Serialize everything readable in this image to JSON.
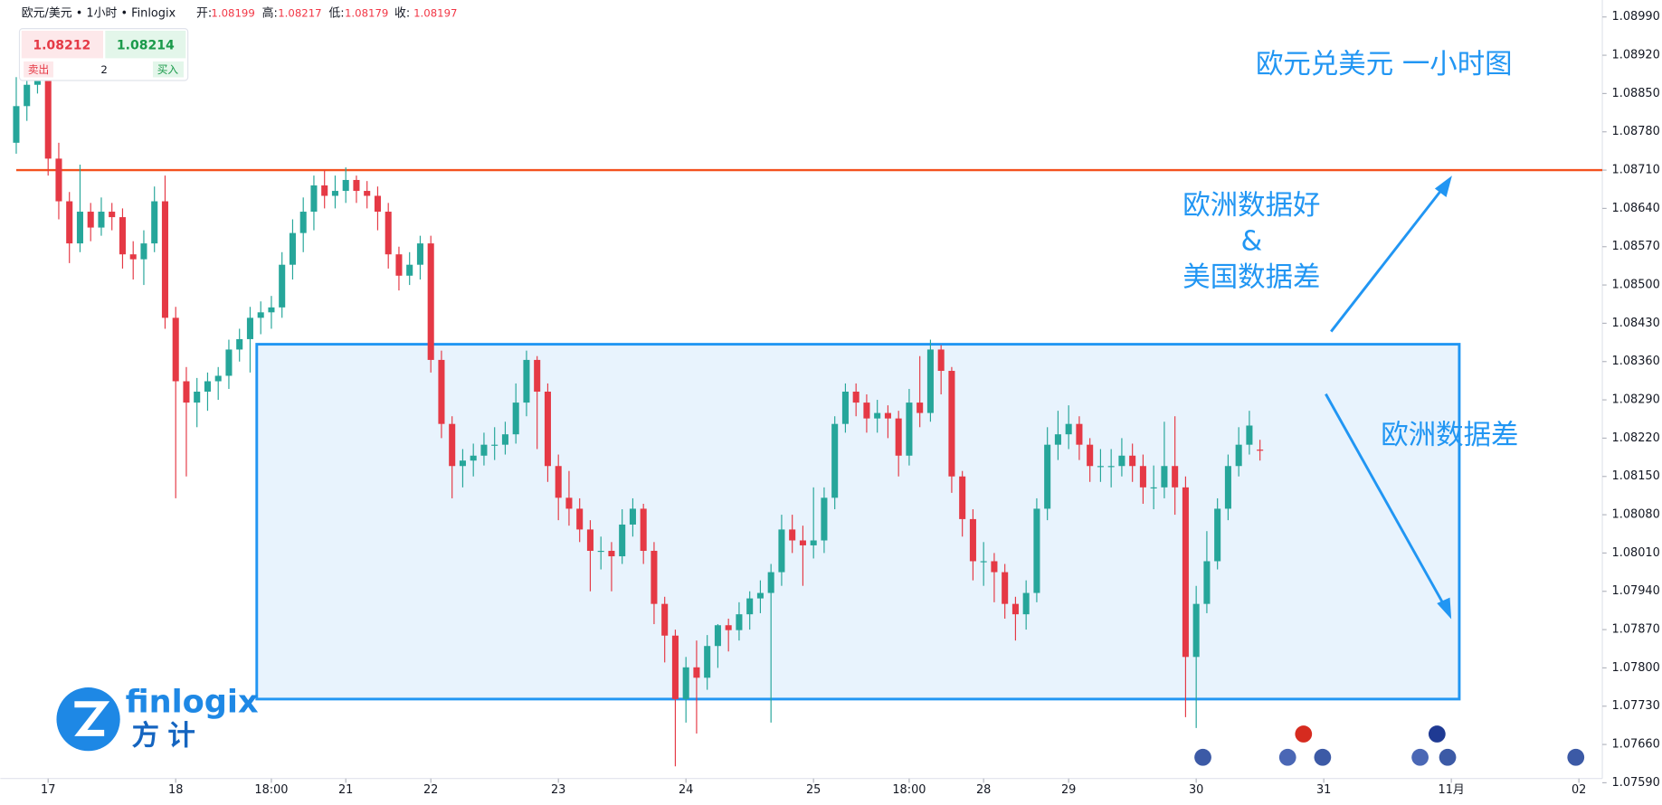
{
  "header": {
    "symbol": "欧元/美元 • 1小时 • Finlogix",
    "open_label": "开:",
    "high_label": "高:",
    "low_label": "低:",
    "close_label": "收:"
  },
  "widget": {
    "sell_price": 1.08212,
    "buy_price": 1.08214,
    "sell": "卖出",
    "quantity": 2,
    "buy": "买入"
  },
  "logo": {
    "brand": "finlogix",
    "chinese": "方计"
  },
  "chart_data": {
    "type": "candlestick",
    "title": "欧元兑美元 一小时图",
    "annotations": [
      "欧洲数据好",
      "&",
      "美国数据差",
      "欧洲数据差"
    ],
    "up_color": "#26a69a",
    "down_color": "#e53945",
    "level_color": "#f4511e",
    "level": 1.0871,
    "ohlc": [
      [
        1.0876,
        1.0888,
        1.0874,
        1.08827
      ],
      [
        1.08827,
        1.089,
        1.088,
        1.08866
      ],
      [
        1.08866,
        1.0893,
        1.0885,
        1.08905
      ],
      [
        1.08905,
        1.08915,
        1.087,
        1.08731
      ],
      [
        1.08731,
        1.0876,
        1.0862,
        1.08653
      ],
      [
        1.08653,
        1.0867,
        1.0854,
        1.08576
      ],
      [
        1.08576,
        1.0872,
        1.0856,
        1.08634
      ],
      [
        1.08634,
        1.0865,
        1.0858,
        1.08605
      ],
      [
        1.08605,
        1.0866,
        1.0859,
        1.08634
      ],
      [
        1.08634,
        1.0865,
        1.086,
        1.08624
      ],
      [
        1.08624,
        1.0864,
        1.0853,
        1.08556
      ],
      [
        1.08556,
        1.0858,
        1.0851,
        1.08547
      ],
      [
        1.08547,
        1.086,
        1.085,
        1.08576
      ],
      [
        1.08576,
        1.0868,
        1.0856,
        1.08653
      ],
      [
        1.08653,
        1.087,
        1.0842,
        1.0844
      ],
      [
        1.0844,
        1.0846,
        1.0811,
        1.08324
      ],
      [
        1.08324,
        1.0835,
        1.0815,
        1.08285
      ],
      [
        1.08285,
        1.0833,
        1.0824,
        1.08305
      ],
      [
        1.08305,
        1.0834,
        1.0827,
        1.08324
      ],
      [
        1.08324,
        1.0835,
        1.0829,
        1.08334
      ],
      [
        1.08334,
        1.084,
        1.0831,
        1.08382
      ],
      [
        1.08382,
        1.0842,
        1.0836,
        1.08401
      ],
      [
        1.08401,
        1.0846,
        1.0834,
        1.0844
      ],
      [
        1.0844,
        1.0847,
        1.0841,
        1.0845
      ],
      [
        1.0845,
        1.0848,
        1.0842,
        1.08459
      ],
      [
        1.08459,
        1.0856,
        1.0844,
        1.08537
      ],
      [
        1.08537,
        1.0862,
        1.0851,
        1.08595
      ],
      [
        1.08595,
        1.0866,
        1.0856,
        1.08634
      ],
      [
        1.08634,
        1.087,
        1.086,
        1.08682
      ],
      [
        1.08682,
        1.0871,
        1.0864,
        1.08663
      ],
      [
        1.08663,
        1.087,
        1.0864,
        1.08672
      ],
      [
        1.08672,
        1.08715,
        1.0865,
        1.08692
      ],
      [
        1.08692,
        1.087,
        1.0865,
        1.08672
      ],
      [
        1.08672,
        1.0869,
        1.0864,
        1.08663
      ],
      [
        1.08663,
        1.0868,
        1.086,
        1.08634
      ],
      [
        1.08634,
        1.0865,
        1.0853,
        1.08556
      ],
      [
        1.08556,
        1.0857,
        1.0849,
        1.08517
      ],
      [
        1.08517,
        1.0856,
        1.085,
        1.08537
      ],
      [
        1.08537,
        1.0859,
        1.0851,
        1.08576
      ],
      [
        1.08576,
        1.0859,
        1.0834,
        1.08363
      ],
      [
        1.08363,
        1.0838,
        1.0822,
        1.08246
      ],
      [
        1.08246,
        1.0826,
        1.0811,
        1.08169
      ],
      [
        1.08169,
        1.082,
        1.0813,
        1.08179
      ],
      [
        1.08179,
        1.0821,
        1.0815,
        1.08188
      ],
      [
        1.08188,
        1.0823,
        1.0817,
        1.08208
      ],
      [
        1.08208,
        1.0824,
        1.0818,
        1.08208
      ],
      [
        1.08208,
        1.0825,
        1.0819,
        1.08227
      ],
      [
        1.08227,
        1.0832,
        1.0821,
        1.08285
      ],
      [
        1.08285,
        1.0838,
        1.0826,
        1.08363
      ],
      [
        1.08363,
        1.0837,
        1.082,
        1.08305
      ],
      [
        1.08305,
        1.0832,
        1.0814,
        1.08169
      ],
      [
        1.08169,
        1.0819,
        1.0807,
        1.08111
      ],
      [
        1.08111,
        1.0816,
        1.0806,
        1.08091
      ],
      [
        1.08091,
        1.0811,
        1.0803,
        1.08053
      ],
      [
        1.08053,
        1.0807,
        1.0794,
        1.08014
      ],
      [
        1.08014,
        1.0804,
        1.0798,
        1.08014
      ],
      [
        1.08014,
        1.0803,
        1.0794,
        1.08004
      ],
      [
        1.08004,
        1.0809,
        1.0799,
        1.08062
      ],
      [
        1.08062,
        1.0811,
        1.0804,
        1.08091
      ],
      [
        1.08091,
        1.081,
        1.0799,
        1.08014
      ],
      [
        1.08014,
        1.0803,
        1.0788,
        1.07917
      ],
      [
        1.07917,
        1.0793,
        1.0781,
        1.07859
      ],
      [
        1.07859,
        1.0787,
        1.0762,
        1.07743
      ],
      [
        1.07743,
        1.0782,
        1.077,
        1.07801
      ],
      [
        1.07801,
        1.0785,
        1.0768,
        1.07782
      ],
      [
        1.07782,
        1.0786,
        1.0776,
        1.0784
      ],
      [
        1.0784,
        1.0788,
        1.078,
        1.07878
      ],
      [
        1.07878,
        1.0789,
        1.0783,
        1.07869
      ],
      [
        1.07869,
        1.0792,
        1.0785,
        1.07898
      ],
      [
        1.07898,
        1.0794,
        1.0787,
        1.07927
      ],
      [
        1.07927,
        1.0796,
        1.079,
        1.07937
      ],
      [
        1.07937,
        1.0799,
        1.077,
        1.07975
      ],
      [
        1.07975,
        1.0808,
        1.0795,
        1.08053
      ],
      [
        1.08053,
        1.0808,
        1.0801,
        1.08033
      ],
      [
        1.08033,
        1.0806,
        1.0795,
        1.08024
      ],
      [
        1.08024,
        1.0813,
        1.08,
        1.08033
      ],
      [
        1.08033,
        1.0813,
        1.0801,
        1.08111
      ],
      [
        1.08111,
        1.0826,
        1.0809,
        1.08246
      ],
      [
        1.08246,
        1.0832,
        1.0823,
        1.08305
      ],
      [
        1.08305,
        1.0832,
        1.0826,
        1.08285
      ],
      [
        1.08285,
        1.083,
        1.0823,
        1.08256
      ],
      [
        1.08256,
        1.0829,
        1.0823,
        1.08266
      ],
      [
        1.08266,
        1.0828,
        1.0822,
        1.08256
      ],
      [
        1.08256,
        1.0827,
        1.0815,
        1.08188
      ],
      [
        1.08188,
        1.0831,
        1.0817,
        1.08285
      ],
      [
        1.08285,
        1.0837,
        1.0824,
        1.08266
      ],
      [
        1.08266,
        1.084,
        1.0825,
        1.08382
      ],
      [
        1.08382,
        1.0839,
        1.083,
        1.08343
      ],
      [
        1.08343,
        1.0835,
        1.0812,
        1.0815
      ],
      [
        1.0815,
        1.0816,
        1.0804,
        1.08072
      ],
      [
        1.08072,
        1.0809,
        1.0796,
        1.07995
      ],
      [
        1.07995,
        1.0803,
        1.0795,
        1.07995
      ],
      [
        1.07995,
        1.0801,
        1.0792,
        1.07975
      ],
      [
        1.07975,
        1.0799,
        1.0789,
        1.07917
      ],
      [
        1.07917,
        1.0793,
        1.0785,
        1.07898
      ],
      [
        1.07898,
        1.0796,
        1.0787,
        1.07937
      ],
      [
        1.07937,
        1.0811,
        1.0792,
        1.08091
      ],
      [
        1.08091,
        1.0824,
        1.0807,
        1.08208
      ],
      [
        1.08208,
        1.0827,
        1.0818,
        1.08227
      ],
      [
        1.08227,
        1.0828,
        1.082,
        1.08246
      ],
      [
        1.08246,
        1.0826,
        1.0818,
        1.08208
      ],
      [
        1.08208,
        1.0822,
        1.0814,
        1.08169
      ],
      [
        1.08169,
        1.082,
        1.0814,
        1.08169
      ],
      [
        1.08169,
        1.082,
        1.0813,
        1.08169
      ],
      [
        1.08169,
        1.0822,
        1.0815,
        1.08188
      ],
      [
        1.08188,
        1.0821,
        1.0814,
        1.08169
      ],
      [
        1.08169,
        1.0819,
        1.081,
        1.0813
      ],
      [
        1.0813,
        1.0817,
        1.0809,
        1.0813
      ],
      [
        1.0813,
        1.0825,
        1.0811,
        1.08169
      ],
      [
        1.08169,
        1.0826,
        1.0808,
        1.0813
      ],
      [
        1.0813,
        1.0815,
        1.0771,
        1.0782
      ],
      [
        1.0782,
        1.0795,
        1.0769,
        1.07917
      ],
      [
        1.07917,
        1.0805,
        1.079,
        1.07995
      ],
      [
        1.07995,
        1.0811,
        1.0798,
        1.08091
      ],
      [
        1.08091,
        1.0819,
        1.0807,
        1.08169
      ],
      [
        1.08169,
        1.0824,
        1.0815,
        1.08208
      ],
      [
        1.08208,
        1.0827,
        1.0819,
        1.08243
      ],
      [
        1.08199,
        1.08217,
        1.08179,
        1.08197
      ]
    ],
    "xlim": [
      0,
      150
    ],
    "xticks": [
      {
        "value": 3,
        "label": "17"
      },
      {
        "value": 15,
        "label": "18"
      },
      {
        "value": 24,
        "label": "18:00"
      },
      {
        "value": 31,
        "label": "21"
      },
      {
        "value": 39,
        "label": "22"
      },
      {
        "value": 51,
        "label": "23"
      },
      {
        "value": 63,
        "label": "24"
      },
      {
        "value": 75,
        "label": "25"
      },
      {
        "value": 84,
        "label": "18:00"
      },
      {
        "value": 91,
        "label": "28"
      },
      {
        "value": 99,
        "label": "29"
      },
      {
        "value": 111,
        "label": "30"
      },
      {
        "value": 123,
        "label": "31"
      },
      {
        "value": 135,
        "label": "11月"
      },
      {
        "value": 147,
        "label": "02"
      }
    ],
    "ylim": [
      1.0759,
      1.0899
    ],
    "yticks": [
      {
        "value": 1.0899,
        "label": "1.08990"
      },
      {
        "value": 1.0892,
        "label": "1.08920"
      },
      {
        "value": 1.0885,
        "label": "1.08850"
      },
      {
        "value": 1.0878,
        "label": "1.08780"
      },
      {
        "value": 1.0871,
        "label": "1.08710"
      },
      {
        "value": 1.0864,
        "label": "1.08640"
      },
      {
        "value": 1.0857,
        "label": "1.08570"
      },
      {
        "value": 1.085,
        "label": "1.08500"
      },
      {
        "value": 1.0843,
        "label": "1.08430"
      },
      {
        "value": 1.0836,
        "label": "1.08360"
      },
      {
        "value": 1.0829,
        "label": "1.08290"
      },
      {
        "value": 1.0822,
        "label": "1.08220"
      },
      {
        "value": 1.0815,
        "label": "1.08150"
      },
      {
        "value": 1.0808,
        "label": "1.08080"
      },
      {
        "value": 1.0801,
        "label": "1.08010"
      },
      {
        "value": 1.0794,
        "label": "1.07940"
      },
      {
        "value": 1.0787,
        "label": "1.07870"
      },
      {
        "value": 1.078,
        "label": "1.07800"
      },
      {
        "value": 1.0773,
        "label": "1.07730"
      },
      {
        "value": 1.0766,
        "label": "1.07660"
      },
      {
        "value": 1.0759,
        "label": "1.07590"
      }
    ],
    "grid": false
  }
}
